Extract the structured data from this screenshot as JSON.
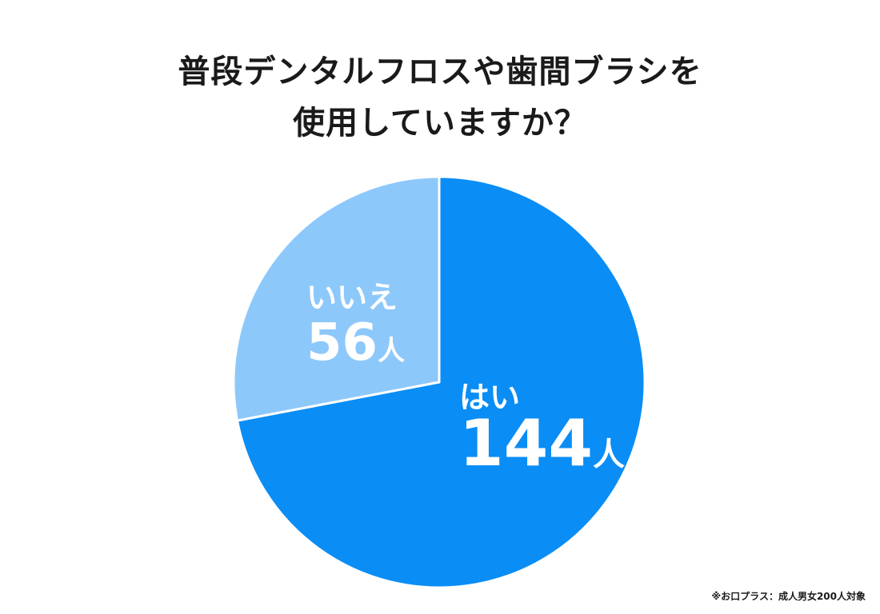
{
  "title": {
    "line1": "普段デンタルフロスや歯間ブラシを",
    "line2": "使用していますか？"
  },
  "colors": {
    "yes": "#0a8df5",
    "no": "#8dc8fb",
    "label_text": "#ffffff",
    "highlight": "#fffbc8"
  },
  "chart_data": {
    "type": "pie",
    "title": "普段デンタルフロスや歯間ブラシを使用していますか？",
    "unit": "人",
    "slices": [
      {
        "label": "はい",
        "value": 144,
        "display": "144"
      },
      {
        "label": "いいえ",
        "value": 56,
        "display": "56"
      }
    ]
  },
  "footnote": "※お口プラス：成人男女200人対象"
}
